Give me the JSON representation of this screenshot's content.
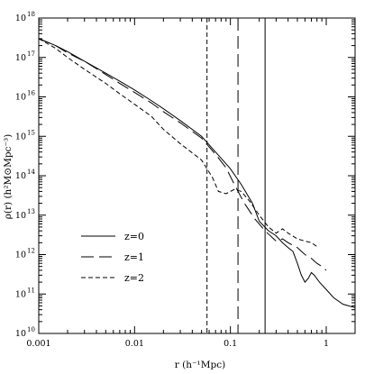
{
  "chart_data": {
    "type": "line",
    "title": "",
    "xlabel": "r (h⁻¹Mpc)",
    "ylabel": "ρ(r) (h²M⊙Mpc⁻³)",
    "xscale": "log",
    "yscale": "log",
    "xlim": [
      0.001,
      2.0
    ],
    "ylim": [
      10000000000.0,
      1e+18
    ],
    "grid": false,
    "legend_position": "lower-left",
    "x_major_ticks": [
      {
        "value": 0.001,
        "label": "0.001"
      },
      {
        "value": 0.01,
        "label": "0.01"
      },
      {
        "value": 0.1,
        "label": "0.1"
      },
      {
        "value": 1,
        "label": "1"
      }
    ],
    "y_major_ticks": [
      {
        "exp": 10
      },
      {
        "exp": 11
      },
      {
        "exp": 12
      },
      {
        "exp": 13
      },
      {
        "exp": 14
      },
      {
        "exp": 15
      },
      {
        "exp": 16
      },
      {
        "exp": 17
      },
      {
        "exp": 18
      }
    ],
    "y_tick_base": "10",
    "series": [
      {
        "name": "z=0",
        "dash": "solid",
        "points": [
          [
            0.001,
            3e+17
          ],
          [
            0.0015,
            2e+17
          ],
          [
            0.002,
            1.4e+17
          ],
          [
            0.003,
            8e+16
          ],
          [
            0.005,
            4e+16
          ],
          [
            0.007,
            2.5e+16
          ],
          [
            0.01,
            1.5e+16
          ],
          [
            0.015,
            8000000000000000.0
          ],
          [
            0.02,
            5000000000000000.0
          ],
          [
            0.03,
            2500000000000000.0
          ],
          [
            0.05,
            1000000000000000.0
          ],
          [
            0.07,
            400000000000000.0
          ],
          [
            0.1,
            150000000000000.0
          ],
          [
            0.13,
            60000000000000.0
          ],
          [
            0.17,
            20000000000000.0
          ],
          [
            0.2,
            7000000000000.0
          ],
          [
            0.25,
            4000000000000.0
          ],
          [
            0.3,
            3000000000000.0
          ],
          [
            0.35,
            2000000000000.0
          ],
          [
            0.4,
            1500000000000.0
          ],
          [
            0.45,
            1200000000000.0
          ],
          [
            0.5,
            600000000000.0
          ],
          [
            0.55,
            300000000000.0
          ],
          [
            0.6,
            200000000000.0
          ],
          [
            0.65,
            250000000000.0
          ],
          [
            0.7,
            350000000000.0
          ],
          [
            0.75,
            300000000000.0
          ],
          [
            0.85,
            200000000000.0
          ],
          [
            1.0,
            130000000000.0
          ],
          [
            1.2,
            80000000000.0
          ],
          [
            1.5,
            55000000000.0
          ],
          [
            2.0,
            45000000000.0
          ]
        ]
      },
      {
        "name": "z=1",
        "dash": "long-dash",
        "points": [
          [
            0.001,
            3e+17
          ],
          [
            0.0015,
            2e+17
          ],
          [
            0.002,
            1.3e+17
          ],
          [
            0.003,
            8e+16
          ],
          [
            0.005,
            3.7e+16
          ],
          [
            0.007,
            2.2e+16
          ],
          [
            0.01,
            1.3e+16
          ],
          [
            0.015,
            7000000000000000.0
          ],
          [
            0.02,
            4200000000000000.0
          ],
          [
            0.03,
            2200000000000000.0
          ],
          [
            0.05,
            900000000000000.0
          ],
          [
            0.07,
            350000000000000.0
          ],
          [
            0.09,
            160000000000000.0
          ],
          [
            0.11,
            60000000000000.0
          ],
          [
            0.14,
            20000000000000.0
          ],
          [
            0.18,
            8000000000000.0
          ],
          [
            0.23,
            4000000000000.0
          ],
          [
            0.3,
            2200000000000.0
          ],
          [
            0.35,
            2500000000000.0
          ],
          [
            0.4,
            2000000000000.0
          ],
          [
            0.5,
            1500000000000.0
          ],
          [
            0.6,
            1000000000000.0
          ],
          [
            0.7,
            800000000000.0
          ],
          [
            0.8,
            600000000000.0
          ],
          [
            0.9,
            500000000000.0
          ],
          [
            1.0,
            400000000000.0
          ]
        ]
      },
      {
        "name": "z=2",
        "dash": "short-dash",
        "points": [
          [
            0.001,
            3e+17
          ],
          [
            0.0015,
            1.7e+17
          ],
          [
            0.002,
            1e+17
          ],
          [
            0.003,
            5e+16
          ],
          [
            0.005,
            2.2e+16
          ],
          [
            0.007,
            1.2e+16
          ],
          [
            0.01,
            6500000000000000.0
          ],
          [
            0.015,
            3200000000000000.0
          ],
          [
            0.02,
            1500000000000000.0
          ],
          [
            0.03,
            650000000000000.0
          ],
          [
            0.05,
            250000000000000.0
          ],
          [
            0.065,
            90000000000000.0
          ],
          [
            0.075,
            40000000000000.0
          ],
          [
            0.09,
            35000000000000.0
          ],
          [
            0.11,
            45000000000000.0
          ],
          [
            0.13,
            40000000000000.0
          ],
          [
            0.16,
            22000000000000.0
          ],
          [
            0.2,
            10000000000000.0
          ],
          [
            0.25,
            5000000000000.0
          ],
          [
            0.3,
            3500000000000.0
          ],
          [
            0.35,
            4500000000000.0
          ],
          [
            0.4,
            3500000000000.0
          ],
          [
            0.5,
            2500000000000.0
          ],
          [
            0.6,
            2200000000000.0
          ],
          [
            0.7,
            2000000000000.0
          ],
          [
            0.8,
            1600000000000.0
          ]
        ]
      }
    ],
    "vertical_lines": [
      {
        "x": 0.057,
        "dash": "short-dash"
      },
      {
        "x": 0.12,
        "dash": "long-dash"
      },
      {
        "x": 0.23,
        "dash": "solid"
      }
    ]
  }
}
